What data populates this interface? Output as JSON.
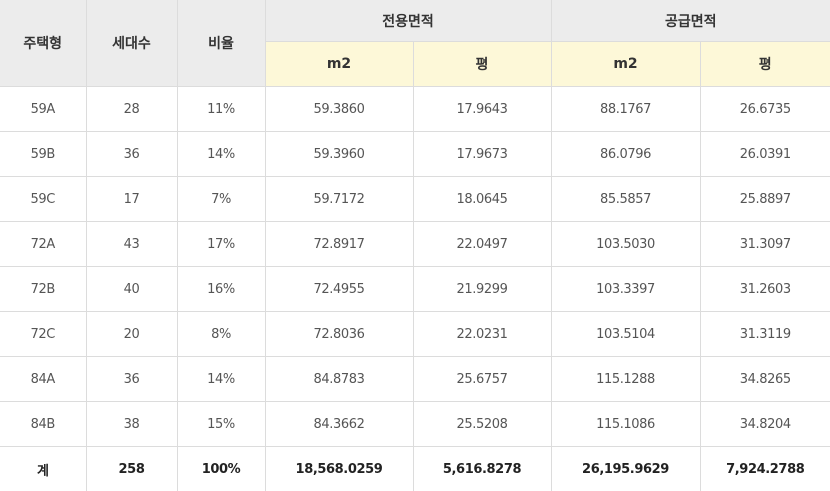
{
  "headers": {
    "type": "주택형",
    "households": "세대수",
    "ratio": "비율",
    "exclusive_area": "전용면적",
    "supply_area": "공급면적",
    "unit_m2": "m2",
    "unit_pyeong": "평"
  },
  "rows": [
    {
      "type": "59A",
      "households": "28",
      "ratio": "11%",
      "excl_m2": "59.3860",
      "excl_py": "17.9643",
      "supp_m2": "88.1767",
      "supp_py": "26.6735"
    },
    {
      "type": "59B",
      "households": "36",
      "ratio": "14%",
      "excl_m2": "59.3960",
      "excl_py": "17.9673",
      "supp_m2": "86.0796",
      "supp_py": "26.0391"
    },
    {
      "type": "59C",
      "households": "17",
      "ratio": "7%",
      "excl_m2": "59.7172",
      "excl_py": "18.0645",
      "supp_m2": "85.5857",
      "supp_py": "25.8897"
    },
    {
      "type": "72A",
      "households": "43",
      "ratio": "17%",
      "excl_m2": "72.8917",
      "excl_py": "22.0497",
      "supp_m2": "103.5030",
      "supp_py": "31.3097"
    },
    {
      "type": "72B",
      "households": "40",
      "ratio": "16%",
      "excl_m2": "72.4955",
      "excl_py": "21.9299",
      "supp_m2": "103.3397",
      "supp_py": "31.2603"
    },
    {
      "type": "72C",
      "households": "20",
      "ratio": "8%",
      "excl_m2": "72.8036",
      "excl_py": "22.0231",
      "supp_m2": "103.5104",
      "supp_py": "31.3119"
    },
    {
      "type": "84A",
      "households": "36",
      "ratio": "14%",
      "excl_m2": "84.8783",
      "excl_py": "25.6757",
      "supp_m2": "115.1288",
      "supp_py": "34.8265"
    },
    {
      "type": "84B",
      "households": "38",
      "ratio": "15%",
      "excl_m2": "84.3662",
      "excl_py": "25.5208",
      "supp_m2": "115.1086",
      "supp_py": "34.8204"
    }
  ],
  "total": {
    "label": "계",
    "households": "258",
    "ratio": "100%",
    "excl_m2": "18,568.0259",
    "excl_py": "5,616.8278",
    "supp_m2": "26,195.9629",
    "supp_py": "7,924.2788"
  },
  "colors": {
    "header_bg": "#ececec",
    "subheader_bg": "#fdf8d8",
    "border": "#dcdcdc"
  }
}
